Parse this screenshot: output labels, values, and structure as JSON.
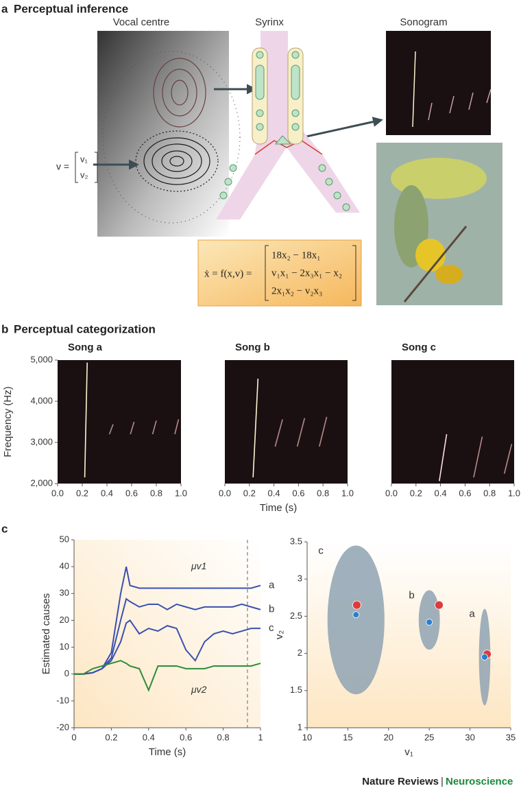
{
  "panels": {
    "a": {
      "label": "a",
      "title": "Perceptual inference",
      "vocal_centre": "Vocal centre",
      "syrinx": "Syrinx",
      "sonogram": "Sonogram",
      "v_lhs": "v =",
      "v_rows": [
        "v₁",
        "v₂"
      ],
      "equation_lhs": "ẋ = f(x,v) =",
      "equation_rows": [
        "18x₂ − 18x₁",
        "v₁x₁ − 2x₃x₁ − x₂",
        "2x₁x₂ − v₂x₃"
      ]
    },
    "b": {
      "label": "b",
      "title": "Perceptual categorization"
    },
    "c": {
      "label": "c"
    }
  },
  "footer": {
    "journal": "Nature Reviews",
    "separator": "|",
    "section": "Neuroscience"
  },
  "chart_data": [
    {
      "type": "image",
      "title": "Song a",
      "ylabel": "Frequency (Hz)",
      "xlim": [
        0,
        1
      ],
      "ylim": [
        2000,
        5000
      ],
      "xticks": [
        {
          "value": 0,
          "label": "0.0"
        },
        {
          "value": 0.2,
          "label": "0.2"
        },
        {
          "value": 0.4,
          "label": "0.4"
        },
        {
          "value": 0.6,
          "label": "0.6"
        },
        {
          "value": 0.8,
          "label": "0.8"
        },
        {
          "value": 1,
          "label": "1.0"
        }
      ],
      "yticks": [
        {
          "value": 2000,
          "label": "2,000"
        },
        {
          "value": 3000,
          "label": "3,000"
        },
        {
          "value": 4000,
          "label": "4,000"
        },
        {
          "value": 5000,
          "label": "5,000"
        }
      ]
    },
    {
      "type": "image",
      "title": "Song b",
      "xlabel": "Time (s)",
      "xlim": [
        0,
        1
      ],
      "ylim": [
        2000,
        5000
      ],
      "xticks": [
        {
          "value": 0,
          "label": "0.0"
        },
        {
          "value": 0.2,
          "label": "0.2"
        },
        {
          "value": 0.4,
          "label": "0.4"
        },
        {
          "value": 0.6,
          "label": "0.6"
        },
        {
          "value": 0.8,
          "label": "0.8"
        },
        {
          "value": 1,
          "label": "1.0"
        }
      ]
    },
    {
      "type": "image",
      "title": "Song c",
      "xlim": [
        0,
        1
      ],
      "ylim": [
        2000,
        5000
      ],
      "xticks": [
        {
          "value": 0,
          "label": "0.0"
        },
        {
          "value": 0.2,
          "label": "0.2"
        },
        {
          "value": 0.4,
          "label": "0.4"
        },
        {
          "value": 0.6,
          "label": "0.6"
        },
        {
          "value": 0.8,
          "label": "0.8"
        },
        {
          "value": 1,
          "label": "1.0"
        }
      ]
    },
    {
      "type": "line",
      "xlabel": "Time (s)",
      "ylabel": "Estimated causes",
      "xlim": [
        0,
        1
      ],
      "ylim": [
        -20,
        50
      ],
      "xticks": [
        0,
        0.2,
        0.4,
        0.6,
        0.8,
        1
      ],
      "yticks": [
        -20,
        -10,
        0,
        10,
        20,
        30,
        40,
        50
      ],
      "vline": 0.93,
      "x": [
        0,
        0.05,
        0.1,
        0.15,
        0.2,
        0.25,
        0.28,
        0.3,
        0.35,
        0.4,
        0.45,
        0.5,
        0.55,
        0.6,
        0.65,
        0.7,
        0.75,
        0.8,
        0.85,
        0.9,
        0.95,
        1
      ],
      "series": [
        {
          "color": "#3a4fb0",
          "label": "a",
          "values": [
            0,
            0,
            0.5,
            2,
            8,
            30,
            40,
            33,
            32,
            32,
            32,
            32,
            32,
            32,
            32,
            32,
            32,
            32,
            32,
            32,
            32,
            33
          ]
        },
        {
          "color": "#3a4fb0",
          "label": "b",
          "values": [
            0,
            0,
            0.5,
            2,
            6,
            20,
            28,
            27,
            25,
            26,
            26,
            24,
            26,
            25,
            24,
            25,
            25,
            25,
            25,
            26,
            25,
            24
          ]
        },
        {
          "color": "#3a4fb0",
          "label": "c",
          "values": [
            0,
            0,
            0.5,
            2,
            5,
            12,
            19,
            20,
            15,
            17,
            16,
            18,
            17,
            9,
            5,
            12,
            15,
            16,
            15,
            16,
            17,
            17
          ]
        },
        {
          "color": "#2e8b3a",
          "values": [
            0,
            0,
            2,
            3,
            4,
            5,
            4,
            3,
            2,
            -6,
            3,
            3,
            3,
            2,
            2,
            2,
            3,
            3,
            3,
            3,
            3,
            4
          ]
        }
      ],
      "annotations": [
        {
          "text": "μv1",
          "x": 0.67,
          "y": 40
        },
        {
          "text": "μv2",
          "x": 0.67,
          "y": -6
        }
      ]
    },
    {
      "type": "scatter",
      "xlabel": "v₁",
      "ylabel": "v₂",
      "xlim": [
        10,
        35
      ],
      "ylim": [
        1,
        3.5
      ],
      "xticks": [
        10,
        15,
        20,
        25,
        30,
        35
      ],
      "yticks": [
        1,
        1.5,
        2,
        2.5,
        3,
        3.5
      ],
      "regions": [
        {
          "label": "c",
          "cx": 16,
          "cy": 2.45,
          "rx": 3.5,
          "ry": 1.0,
          "color": "#8fa3b3"
        },
        {
          "label": "b",
          "cx": 25,
          "cy": 2.45,
          "rx": 1.3,
          "ry": 0.4,
          "color": "#8fa3b3"
        },
        {
          "label": "a",
          "cx": 31.8,
          "cy": 1.95,
          "rx": 0.7,
          "ry": 0.65,
          "color": "#8fa3b3"
        }
      ],
      "series": [
        {
          "color": "#e03a3a",
          "x": [
            16.1,
            26.2,
            32.1
          ],
          "values": [
            2.65,
            2.65,
            1.99
          ]
        },
        {
          "color": "#2a7fcf",
          "x": [
            16,
            25,
            31.8
          ],
          "values": [
            2.52,
            2.42,
            1.95
          ]
        }
      ]
    }
  ]
}
